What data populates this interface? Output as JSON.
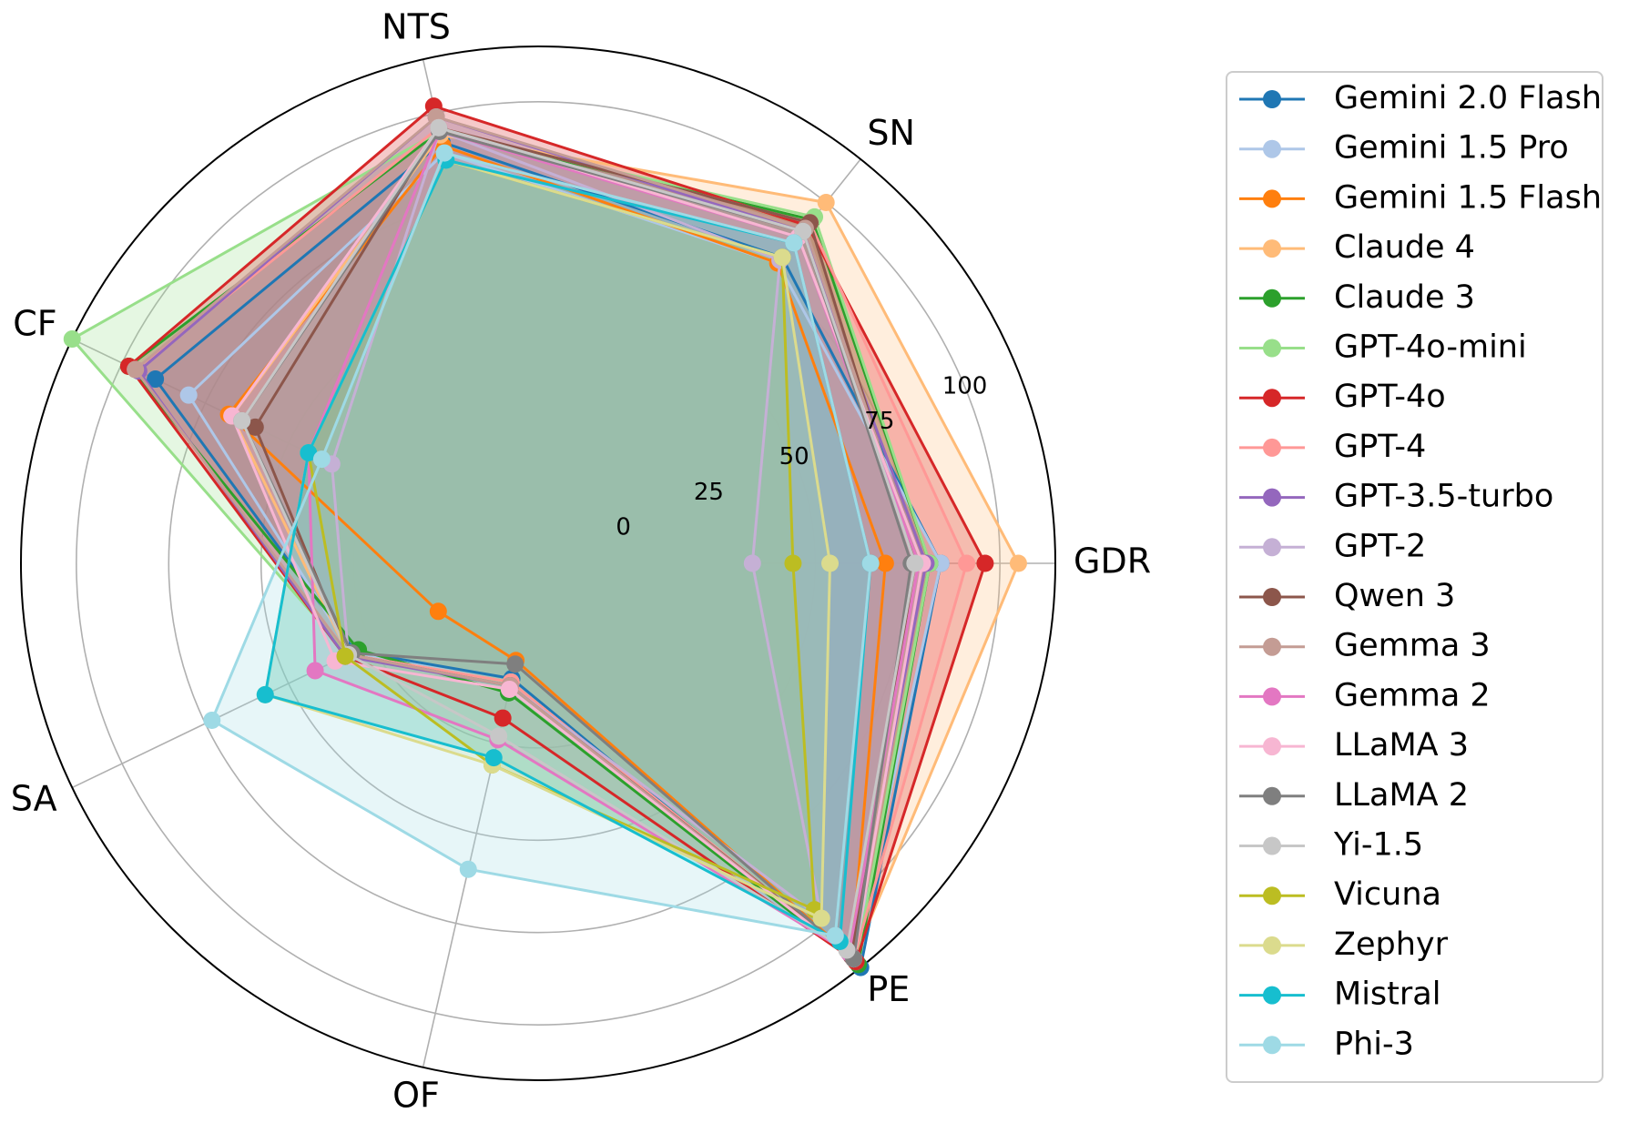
{
  "chart_data": {
    "type": "radar",
    "axes": [
      "GDR",
      "SN",
      "NTS",
      "CF",
      "SA",
      "OF",
      "PE"
    ],
    "radial_ticks": [
      0,
      25,
      50,
      75,
      100
    ],
    "rlim": [
      -25,
      115
    ],
    "grid": true,
    "legend_position": "right",
    "series": [
      {
        "name": "Gemini 2.0 Flash",
        "color": "#1f77b4",
        "values": [
          84,
          81,
          92,
          90,
          30,
          7,
          115
        ]
      },
      {
        "name": "Gemini 1.5 Pro",
        "color": "#aec7e8",
        "values": [
          84,
          79,
          89,
          80,
          31,
          8,
          112
        ]
      },
      {
        "name": "Gemini 1.5 Flash",
        "color": "#ff7f0e",
        "values": [
          69,
          79,
          91,
          68,
          5,
          2,
          111
        ]
      },
      {
        "name": "Claude 4",
        "color": "#ffbb78",
        "values": [
          105,
          100,
          94,
          67,
          32,
          8,
          112
        ]
      },
      {
        "name": "Claude 3",
        "color": "#2ca02c",
        "values": [
          81,
          94,
          95,
          98,
          29,
          11,
          114
        ]
      },
      {
        "name": "GPT-4o-mini",
        "color": "#98df8a",
        "values": [
          81,
          95,
          95,
          115,
          32,
          8,
          113
        ]
      },
      {
        "name": "GPT-4o",
        "color": "#d62728",
        "values": [
          96,
          92,
          102,
          98,
          33,
          18,
          113
        ]
      },
      {
        "name": "GPT-4",
        "color": "#ff9896",
        "values": [
          91,
          93,
          96,
          96,
          32,
          8,
          112
        ]
      },
      {
        "name": "GPT-3.5-turbo",
        "color": "#9467bd",
        "values": [
          80,
          90,
          99,
          95,
          33,
          9,
          111
        ]
      },
      {
        "name": "GPT-2",
        "color": "#c5b0d5",
        "values": [
          33,
          80,
          95,
          37,
          32,
          9,
          98
        ]
      },
      {
        "name": "Qwen 3",
        "color": "#8c564b",
        "values": [
          77,
          93,
          96,
          60,
          32,
          9,
          111
        ]
      },
      {
        "name": "Gemma 3",
        "color": "#c49c94",
        "values": [
          78,
          91,
          99,
          96,
          32,
          9,
          112
        ]
      },
      {
        "name": "Gemma 2",
        "color": "#e377c2",
        "values": [
          78,
          88,
          95,
          44,
          42,
          24,
          110
        ]
      },
      {
        "name": "LLaMA 3",
        "color": "#f7b6d2",
        "values": [
          79,
          88,
          96,
          67,
          36,
          10,
          112
        ]
      },
      {
        "name": "LLaMA 2",
        "color": "#7f7f7f",
        "values": [
          76,
          90,
          95,
          64,
          31,
          3,
          112
        ]
      },
      {
        "name": "Yi-1.5",
        "color": "#c7c7c7",
        "values": [
          77,
          90,
          96,
          64,
          32,
          23,
          109
        ]
      },
      {
        "name": "Vicuna",
        "color": "#bcbd22",
        "values": [
          44,
          81,
          87,
          44,
          33,
          31,
          95
        ]
      },
      {
        "name": "Zephyr",
        "color": "#dbdb8d",
        "values": [
          54,
          81,
          87,
          44,
          57,
          31,
          98
        ]
      },
      {
        "name": "Mistral",
        "color": "#17becf",
        "values": [
          65,
          86,
          87,
          44,
          57,
          29,
          106
        ]
      },
      {
        "name": "Phi-3",
        "color": "#9edae5",
        "values": [
          65,
          86,
          89,
          40,
          73,
          60,
          104
        ]
      }
    ]
  }
}
